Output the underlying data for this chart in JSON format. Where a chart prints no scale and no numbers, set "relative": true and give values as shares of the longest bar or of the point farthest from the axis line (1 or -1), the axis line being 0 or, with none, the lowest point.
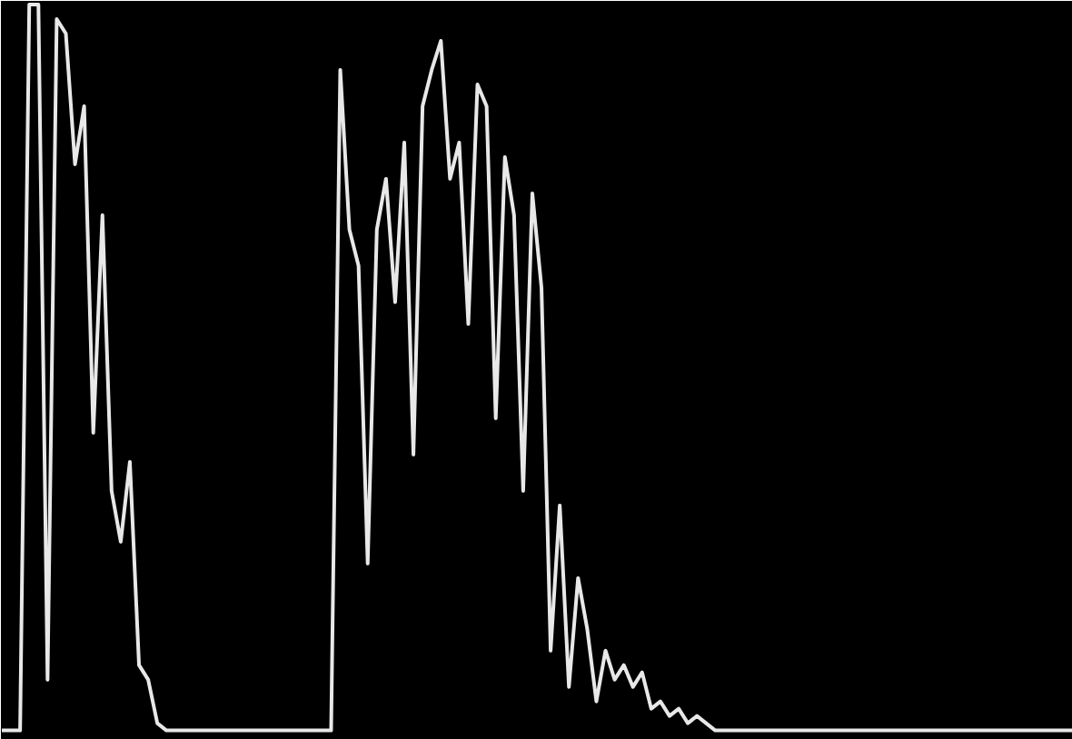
{
  "chart_data": {
    "type": "line",
    "relative": true,
    "categories": [
      null,
      null,
      null,
      null,
      null,
      null,
      null,
      null,
      null,
      null,
      null,
      null,
      null,
      null,
      null,
      null,
      null,
      null,
      null,
      null,
      null,
      null,
      null,
      null,
      null,
      null,
      null,
      null,
      null,
      null,
      null,
      null,
      null,
      null,
      null,
      null,
      null,
      null,
      null,
      null,
      null,
      null,
      null,
      null,
      null,
      null,
      null,
      null,
      null,
      null,
      null,
      null,
      null,
      null,
      null,
      null,
      null,
      null,
      null,
      null,
      null,
      null,
      null,
      null,
      null,
      null,
      null,
      null,
      null,
      null,
      null,
      null,
      null,
      null,
      null,
      null,
      null,
      null,
      null,
      null,
      null,
      null,
      null,
      null,
      null,
      null,
      null,
      null,
      null,
      null,
      null,
      null,
      null,
      null,
      null,
      null,
      null,
      null,
      null,
      null,
      null,
      null,
      null,
      null,
      null,
      null,
      null,
      null,
      null,
      null,
      null,
      null,
      null,
      null,
      null,
      null,
      null,
      null
    ],
    "series": [
      {
        "color": "#e8e8e8",
        "values": [
          0,
          0,
          0,
          1,
          1,
          0.07,
          0.98,
          0.96,
          0.78,
          0.86,
          0.41,
          0.71,
          0.33,
          0.26,
          0.37,
          0.09,
          0.07,
          0.01,
          0,
          0,
          0,
          0,
          0,
          0,
          0,
          0,
          0,
          0,
          0,
          0,
          0,
          0,
          0,
          0,
          0,
          0,
          0,
          0.91,
          0.69,
          0.64,
          0.23,
          0.69,
          0.76,
          0.59,
          0.81,
          0.38,
          0.86,
          0.91,
          0.95,
          0.76,
          0.81,
          0.56,
          0.89,
          0.86,
          0.43,
          0.79,
          0.71,
          0.33,
          0.74,
          0.61,
          0.11,
          0.31,
          0.06,
          0.21,
          0.14,
          0.04,
          0.11,
          0.07,
          0.09,
          0.06,
          0.08,
          0.03,
          0.04,
          0.02,
          0.03,
          0.01,
          0.02,
          0.01,
          0,
          0,
          0,
          0,
          0,
          0,
          0,
          0,
          0,
          0,
          0,
          0,
          0,
          0,
          0,
          0,
          0,
          0,
          0,
          0,
          0,
          0,
          0,
          0,
          0,
          0,
          0,
          0,
          0,
          0,
          0,
          0,
          0,
          0,
          0,
          0,
          0,
          0,
          0,
          0
        ]
      }
    ]
  }
}
